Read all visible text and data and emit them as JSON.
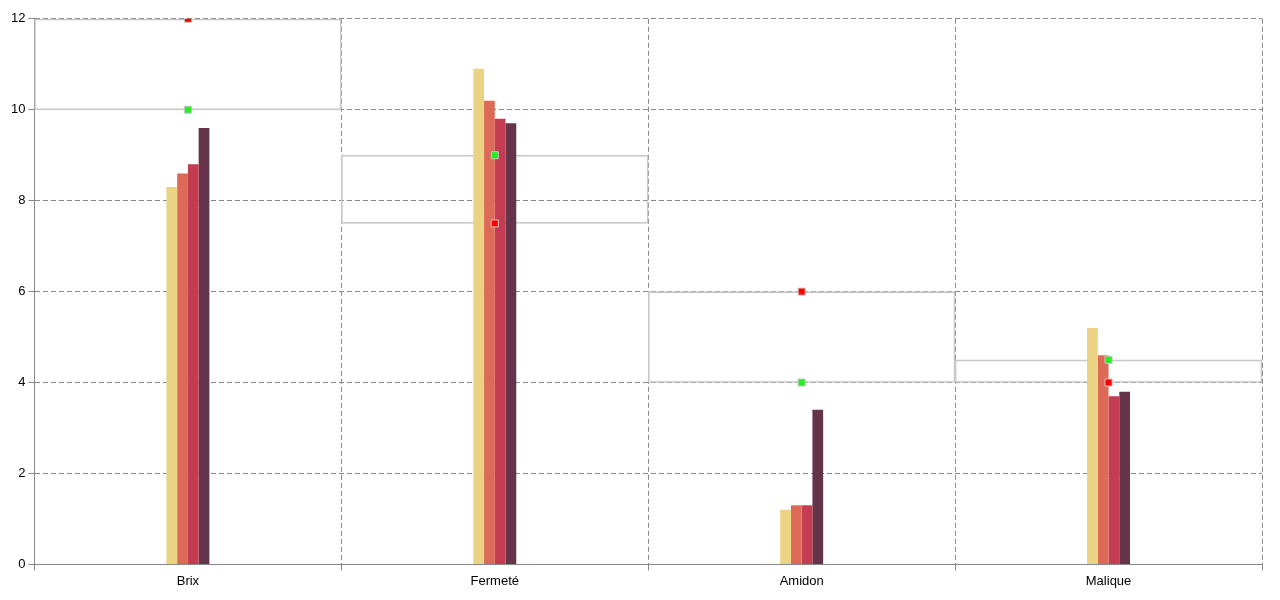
{
  "chart_data": {
    "type": "bar",
    "categories": [
      "Brix",
      "Fermeté",
      "Amidon",
      "Malique"
    ],
    "series": [
      {
        "color": "#ecd383",
        "values": [
          8.3,
          10.9,
          1.2,
          5.2
        ]
      },
      {
        "color": "#dd6a56",
        "values": [
          8.6,
          10.2,
          1.3,
          4.6
        ]
      },
      {
        "color": "#c33c52",
        "values": [
          8.8,
          9.8,
          1.3,
          3.7
        ]
      },
      {
        "color": "#65344a",
        "values": [
          9.6,
          9.7,
          3.4,
          3.8
        ]
      },
      {
        "type": "bar",
        "color": "#c8c8c8",
        "base": [
          10,
          7.5,
          4,
          4
        ],
        "values": [
          2,
          1.5,
          2,
          0.5
        ]
      },
      {
        "type": "scatter",
        "color": "#22ee22",
        "x": [
          "Brix",
          "Fermeté",
          "Amidon",
          "Malique"
        ],
        "values": [
          10,
          9,
          4,
          4.5
        ]
      },
      {
        "type": "scatter",
        "color": "#ff0000",
        "x": [
          "Brix",
          "Fermeté",
          "Amidon",
          "Malique"
        ],
        "values": [
          12,
          7.5,
          6,
          4
        ]
      }
    ],
    "ylim": [
      0,
      12
    ],
    "yticks": [
      0,
      2,
      4,
      6,
      8,
      10,
      12
    ],
    "grid": true,
    "legend": false,
    "marker": "square"
  }
}
